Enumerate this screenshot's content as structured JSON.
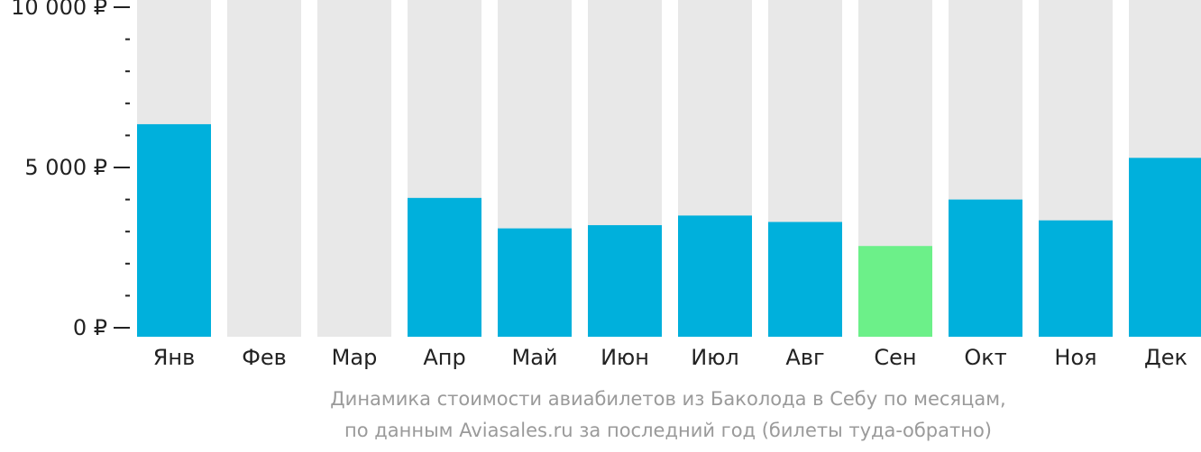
{
  "chart_data": {
    "type": "bar",
    "categories": [
      "Янв",
      "Фев",
      "Мар",
      "Апр",
      "Май",
      "Июн",
      "Июл",
      "Авг",
      "Сен",
      "Окт",
      "Ноя",
      "Дек"
    ],
    "values": [
      6350,
      null,
      null,
      4050,
      3100,
      3200,
      3500,
      3300,
      2550,
      4000,
      3350,
      5300
    ],
    "ylim": [
      0,
      10500
    ],
    "yticks": [
      {
        "value": 0,
        "label": "0 ₽"
      },
      {
        "value": 5000,
        "label": "5 000 ₽"
      },
      {
        "value": 10000,
        "label": "10 000 ₽"
      }
    ],
    "minor_tick_step": 1000,
    "highlight_index": 8,
    "caption": [
      "Динамика стоимости авиабилетов из Баколода в Себу по месяцам,",
      "по данным Aviasales.ru за последний год (билеты туда-обратно)"
    ],
    "colors": {
      "bar": "#00b0dc",
      "highlight": "#6cf089",
      "background_bar": "#e8e8e8",
      "axis": "#222222",
      "caption": "#9a9a9a"
    }
  }
}
